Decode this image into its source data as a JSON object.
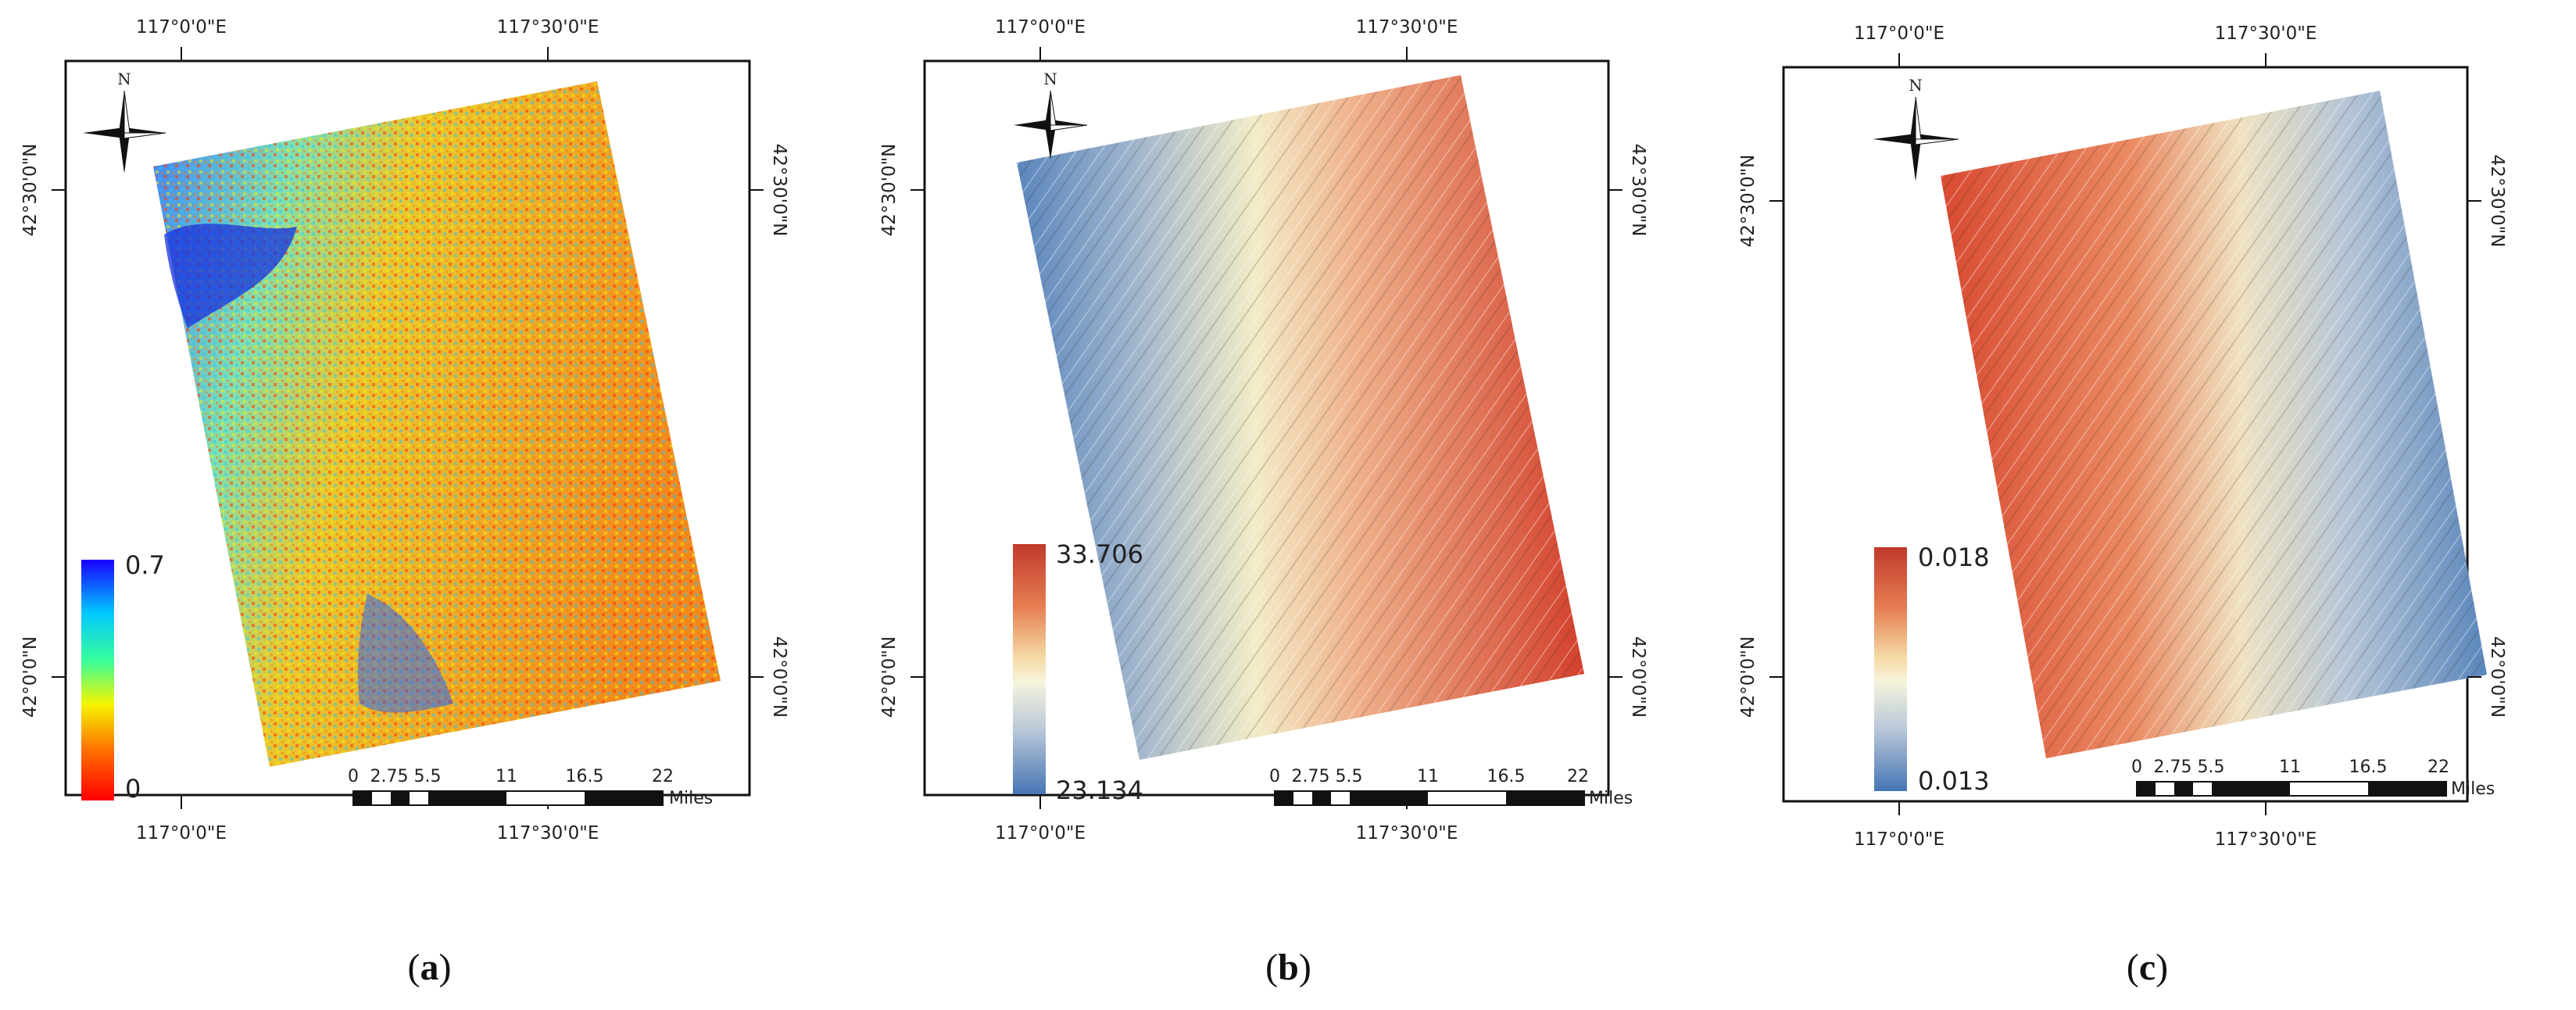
{
  "panels": [
    {
      "id": "a",
      "caption_letter": "a",
      "colormap": "jet",
      "colorbar": {
        "max": "0.7",
        "min": "0",
        "colors": [
          "#1a00ff",
          "#00c8ff",
          "#38ff9a",
          "#f5f500",
          "#ff6a00",
          "#ff0000"
        ]
      },
      "axes": {
        "top": [
          "117°0'0\"E",
          "117°30'0\"E"
        ],
        "bottom": [
          "117°0'0\"E",
          "117°30'0\"E"
        ],
        "left": [
          "42°30'0\"N",
          "42°0'0\"N"
        ],
        "right": [
          "42°30'0\"N",
          "42°0'0\"N"
        ]
      },
      "scale_bar": {
        "labels": [
          "0",
          "2.75",
          "5.5",
          "11",
          "16.5",
          "22"
        ],
        "unit": "Miles"
      }
    },
    {
      "id": "b",
      "caption_letter": "b",
      "colormap": "red-yellow-blue",
      "colorbar": {
        "max": "33.706",
        "min": "23.134",
        "colors": [
          "#c0392b",
          "#e67e52",
          "#f4d9a4",
          "#f7f4dc",
          "#b7c6d8",
          "#4575b4"
        ]
      },
      "axes": {
        "top": [
          "117°0'0\"E",
          "117°30'0\"E"
        ],
        "bottom": [
          "117°0'0\"E",
          "117°30'0\"E"
        ],
        "left": [
          "42°30'0\"N",
          "42°0'0\"N"
        ],
        "right": [
          "42°30'0\"N",
          "42°0'0\"N"
        ]
      },
      "scale_bar": {
        "labels": [
          "0",
          "2.75",
          "5.5",
          "11",
          "16.5",
          "22"
        ],
        "unit": "Miles"
      }
    },
    {
      "id": "c",
      "caption_letter": "c",
      "colormap": "red-yellow-blue",
      "colorbar": {
        "max": "0.018",
        "min": "0.013",
        "colors": [
          "#c0392b",
          "#e67e52",
          "#f4d9a4",
          "#f7f4dc",
          "#b7c6d8",
          "#4575b4"
        ]
      },
      "axes": {
        "top": [
          "117°0'0\"E",
          "117°30'0\"E"
        ],
        "bottom": [
          "117°0'0\"E",
          "117°30'0\"E"
        ],
        "left": [
          "42°30'0\"N",
          "42°0'0\"N"
        ],
        "right": [
          "42°30'0\"N",
          "42°0'0\"N"
        ]
      },
      "scale_bar": {
        "labels": [
          "0",
          "2.75",
          "5.5",
          "11",
          "16.5",
          "22"
        ],
        "unit": "Miles"
      }
    }
  ],
  "north_arrow": {
    "label": "N"
  }
}
